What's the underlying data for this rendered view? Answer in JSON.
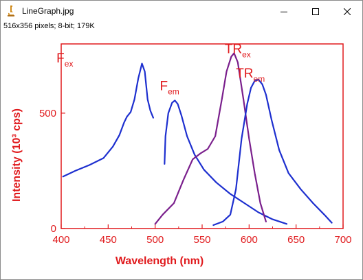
{
  "window": {
    "title": "LineGraph.jpg",
    "info": "516x356 pixels; 8-bit; 179K",
    "controls": {
      "minimize": "minimize-icon",
      "maximize": "maximize-icon",
      "close": "close-icon"
    }
  },
  "colors": {
    "axis": "#e0191c",
    "curve": "#1d2fcf",
    "overlap": "#7a1f8c"
  },
  "chart_data": {
    "type": "line",
    "xlabel": "Wavelength (nm)",
    "ylabel": "Intensity (10³ cps)",
    "xlim": [
      400,
      700
    ],
    "ylim": [
      0,
      800
    ],
    "xticks": [
      400,
      450,
      500,
      550,
      600,
      650,
      700
    ],
    "yticks": [
      0,
      500
    ],
    "x_tick_labels": [
      "400",
      "450",
      "500",
      "550",
      "600",
      "650",
      "700"
    ],
    "y_tick_labels": [
      "0",
      "500"
    ],
    "grid": false,
    "series": [
      {
        "name": "Fex",
        "label_main": "F",
        "label_sub": "ex",
        "label_at": [
          395,
          720
        ],
        "x": [
          402,
          415,
          430,
          445,
          455,
          462,
          467,
          470,
          474,
          478,
          482,
          486,
          489,
          492,
          495,
          498
        ],
        "y": [
          225,
          250,
          275,
          305,
          355,
          405,
          460,
          485,
          505,
          560,
          650,
          715,
          680,
          560,
          510,
          480
        ]
      },
      {
        "name": "Fem",
        "label_main": "F",
        "label_sub": "em",
        "label_at": [
          505,
          600
        ],
        "x": [
          510,
          511,
          514,
          518,
          521,
          524,
          528,
          534,
          542,
          552,
          565,
          580,
          595,
          610,
          625,
          640
        ],
        "y": [
          280,
          400,
          500,
          545,
          555,
          540,
          490,
          400,
          320,
          255,
          200,
          150,
          110,
          70,
          40,
          20
        ]
      },
      {
        "name": "TRex",
        "label_main": "TR",
        "label_sub": "ex",
        "label_at": [
          574,
          760
        ],
        "x": [
          500,
          508,
          520,
          530,
          540,
          548,
          556,
          564,
          571,
          576,
          581,
          584,
          588,
          594,
          600,
          606,
          612,
          618
        ],
        "y": [
          20,
          60,
          110,
          210,
          300,
          325,
          345,
          400,
          560,
          680,
          745,
          760,
          720,
          560,
          390,
          240,
          110,
          30
        ]
      },
      {
        "name": "TRem",
        "label_main": "TR",
        "label_sub": "em",
        "label_at": [
          586,
          655
        ],
        "x": [
          562,
          572,
          580,
          586,
          592,
          598,
          602,
          606,
          610,
          614,
          618,
          624,
          632,
          642,
          655,
          668,
          680,
          688
        ],
        "y": [
          15,
          30,
          60,
          170,
          390,
          540,
          610,
          640,
          645,
          625,
          580,
          470,
          340,
          240,
          170,
          110,
          60,
          25
        ]
      }
    ]
  }
}
